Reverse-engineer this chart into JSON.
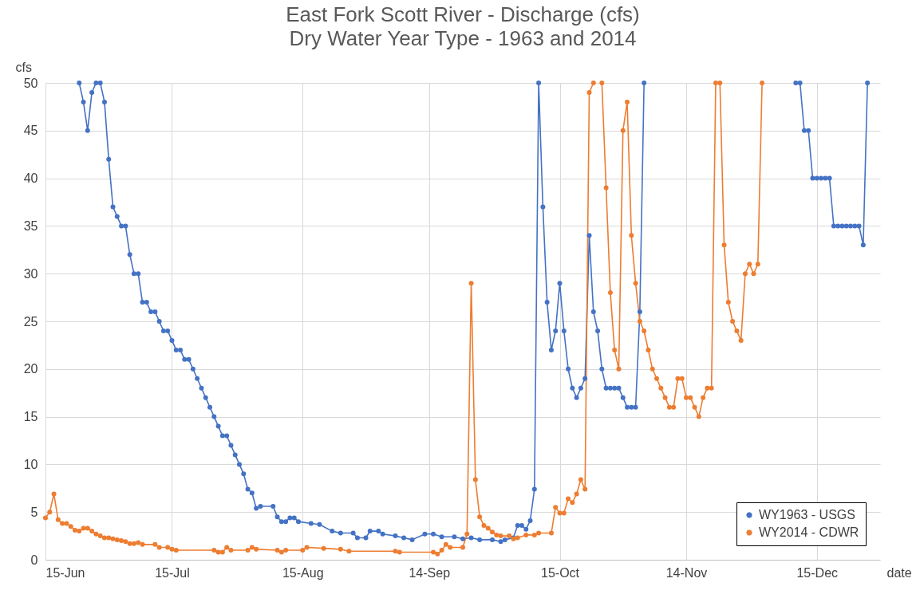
{
  "chart_data": {
    "type": "line",
    "title": "East Fork Scott River - Discharge (cfs)",
    "subtitle": "Dry Water Year Type - 1963 and 2014",
    "xlabel": "date",
    "ylabel": "cfs",
    "xlim": [
      "--06-15",
      "--12-30"
    ],
    "xticks": [
      {
        "value": "--06-15",
        "label": "15-Jun"
      },
      {
        "value": "--07-15",
        "label": "15-Jul"
      },
      {
        "value": "--08-15",
        "label": "15-Aug"
      },
      {
        "value": "--09-14",
        "label": "14-Sep"
      },
      {
        "value": "--10-15",
        "label": "15-Oct"
      },
      {
        "value": "--11-14",
        "label": "14-Nov"
      },
      {
        "value": "--12-15",
        "label": "15-Dec"
      }
    ],
    "ylim": [
      0,
      50
    ],
    "yticks": [
      0,
      5,
      10,
      15,
      20,
      25,
      30,
      35,
      40,
      45,
      50
    ],
    "grid": true,
    "legend": "bottom right",
    "marker": "circle",
    "line_style": "solid",
    "series": [
      {
        "name": "WY1963 - USGS",
        "color": "#4472c4",
        "x": [
          "--06-23",
          "--06-24",
          "--06-25",
          "--06-26",
          "--06-27",
          "--06-28",
          "--06-29",
          "--06-30",
          "--07-01",
          "--07-02",
          "--07-03",
          "--07-04",
          "--07-05",
          "--07-06",
          "--07-07",
          "--07-08",
          "--07-09",
          "--07-10",
          "--07-11",
          "--07-12",
          "--07-13",
          "--07-14",
          "--07-15",
          "--07-16",
          "--07-17",
          "--07-18",
          "--07-19",
          "--07-20",
          "--07-21",
          "--07-22",
          "--07-23",
          "--07-24",
          "--07-25",
          "--07-26",
          "--07-27",
          "--07-28",
          "--07-29",
          "--07-30",
          "--07-31",
          "--08-01",
          "--08-02",
          "--08-03",
          "--08-04",
          "--08-05",
          "--08-08",
          "--08-09",
          "--08-10",
          "--08-11",
          "--08-12",
          "--08-13",
          "--08-14",
          "--08-17",
          "--08-19",
          "--08-22",
          "--08-24",
          "--08-27",
          "--08-28",
          "--08-30",
          "--08-31",
          "--09-02",
          "--09-03",
          "--09-06",
          "--09-08",
          "--09-10",
          "--09-13",
          "--09-15",
          "--09-17",
          "--09-20",
          "--09-22",
          "--09-24",
          "--09-26",
          "--09-29",
          "--10-01",
          "--10-02",
          "--10-04",
          "--10-05",
          "--10-06",
          "--10-07",
          "--10-08",
          "--10-09",
          "--10-10",
          "--10-11",
          "--10-12",
          "--10-13",
          "--10-14",
          "--10-15",
          "--10-16",
          "--10-17",
          "--10-18",
          "--10-19",
          "--10-20",
          "--10-21",
          "--10-22",
          "--10-23",
          "--10-24",
          "--10-25",
          "--10-26",
          "--10-27",
          "--10-28",
          "--10-29",
          "--10-30",
          "--10-31",
          "--11-01",
          "--11-02",
          "--11-03",
          "--11-04",
          "--11-22",
          "--12-10",
          "--12-11",
          "--12-12",
          "--12-13",
          "--12-14",
          "--12-15",
          "--12-16",
          "--12-17",
          "--12-18",
          "--12-19",
          "--12-20",
          "--12-21",
          "--12-22",
          "--12-23",
          "--12-24",
          "--12-25",
          "--12-26",
          "--12-27"
        ],
        "values": [
          50,
          48,
          45,
          49,
          50,
          50,
          48,
          42,
          37,
          36,
          35,
          35,
          32,
          30,
          30,
          27,
          27,
          26,
          26,
          25,
          24,
          24,
          23,
          22,
          22,
          21,
          21,
          20,
          19,
          18,
          17,
          16,
          15,
          14,
          13,
          13,
          12,
          11,
          10,
          9,
          7.4,
          7,
          5.4,
          5.6,
          5.6,
          4.5,
          4,
          4,
          4.4,
          4.4,
          4,
          3.8,
          3.7,
          3,
          2.8,
          2.8,
          2.3,
          2.3,
          3,
          3,
          2.7,
          2.5,
          2.3,
          2.1,
          2.7,
          2.7,
          2.4,
          2.4,
          2.2,
          2.3,
          2.1,
          2.1,
          1.9,
          2.1,
          2.3,
          3.6,
          3.6,
          3.2,
          4.1,
          7.4,
          50,
          37,
          27,
          22,
          24,
          29,
          24,
          20,
          18,
          17,
          18,
          19,
          34,
          26,
          24,
          20,
          18,
          18,
          18,
          18,
          17,
          16,
          16,
          16,
          26,
          50,
          null,
          50,
          50,
          45,
          45,
          40,
          40,
          40,
          40,
          40,
          35,
          35,
          35,
          35,
          35,
          35,
          35,
          33,
          50
        ]
      },
      {
        "name": "WY2014 - CDWR",
        "color": "#ed7d31",
        "x": [
          "--06-15",
          "--06-16",
          "--06-17",
          "--06-18",
          "--06-19",
          "--06-20",
          "--06-21",
          "--06-22",
          "--06-23",
          "--06-24",
          "--06-25",
          "--06-26",
          "--06-27",
          "--06-28",
          "--06-29",
          "--06-30",
          "--07-01",
          "--07-02",
          "--07-03",
          "--07-04",
          "--07-05",
          "--07-06",
          "--07-07",
          "--07-08",
          "--07-11",
          "--07-12",
          "--07-14",
          "--07-15",
          "--07-16",
          "--07-25",
          "--07-26",
          "--07-27",
          "--07-28",
          "--07-29",
          "--08-02",
          "--08-03",
          "--08-04",
          "--08-09",
          "--08-10",
          "--08-11",
          "--08-15",
          "--08-16",
          "--08-20",
          "--08-24",
          "--08-26",
          "--09-06",
          "--09-07",
          "--09-15",
          "--09-16",
          "--09-17",
          "--09-18",
          "--09-19",
          "--09-22",
          "--09-23",
          "--09-24",
          "--09-25",
          "--09-26",
          "--09-27",
          "--09-28",
          "--09-29",
          "--09-30",
          "--10-01",
          "--10-03",
          "--10-04",
          "--10-05",
          "--10-07",
          "--10-09",
          "--10-10",
          "--10-13",
          "--10-14",
          "--10-15",
          "--10-16",
          "--10-17",
          "--10-18",
          "--10-19",
          "--10-20",
          "--10-21",
          "--10-22",
          "--10-23",
          "--10-24",
          "--10-25",
          "--10-26",
          "--10-27",
          "--10-28",
          "--10-29",
          "--10-30",
          "--10-31",
          "--11-01",
          "--11-02",
          "--11-03",
          "--11-04",
          "--11-05",
          "--11-06",
          "--11-07",
          "--11-08",
          "--11-09",
          "--11-10",
          "--11-11",
          "--11-12",
          "--11-13",
          "--11-14",
          "--11-15",
          "--11-16",
          "--11-17",
          "--11-18",
          "--11-19",
          "--11-20",
          "--11-21",
          "--11-22",
          "--11-23",
          "--11-24",
          "--11-25",
          "--11-26",
          "--11-27",
          "--11-28",
          "--11-29",
          "--11-30",
          "--12-01",
          "--12-02"
        ],
        "values": [
          4.4,
          5,
          6.9,
          4.2,
          3.8,
          3.8,
          3.5,
          3.1,
          3,
          3.3,
          3.3,
          3,
          2.7,
          2.5,
          2.3,
          2.3,
          2.2,
          2.1,
          2,
          1.9,
          1.7,
          1.7,
          1.8,
          1.6,
          1.6,
          1.3,
          1.3,
          1.1,
          1,
          1,
          0.8,
          0.8,
          1.3,
          1,
          1,
          1.3,
          1.1,
          1,
          0.8,
          1,
          1,
          1.3,
          1.2,
          1.1,
          0.9,
          0.9,
          0.8,
          0.8,
          0.6,
          1,
          1.6,
          1.3,
          1.3,
          2.7,
          29,
          8.4,
          4.5,
          3.6,
          3.3,
          2.9,
          2.6,
          2.5,
          2.5,
          2.2,
          2.3,
          2.6,
          2.6,
          2.8,
          2.8,
          5.5,
          4.9,
          4.9,
          6.4,
          6,
          6.9,
          8.4,
          7.4,
          49,
          50,
          null,
          50,
          39,
          28,
          22,
          20,
          45,
          48,
          34,
          29,
          25,
          24,
          22,
          20,
          19,
          18,
          17,
          16,
          16,
          19,
          19,
          17,
          17,
          16,
          15,
          17,
          18,
          18,
          50,
          50,
          33,
          27,
          25,
          24,
          23,
          30,
          31,
          30,
          31,
          50
        ]
      }
    ]
  }
}
